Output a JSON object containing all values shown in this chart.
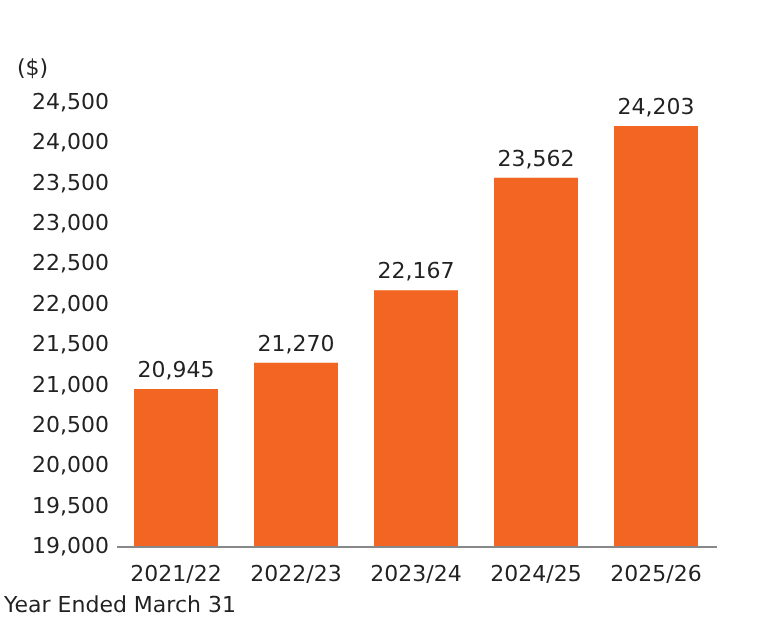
{
  "chart_data": {
    "type": "bar",
    "ylabel": "($)",
    "categories": [
      "2021/22",
      "2022/23",
      "2023/24",
      "2024/25",
      "2025/26"
    ],
    "values": [
      20945,
      21270,
      22167,
      23562,
      24203
    ],
    "color": "#f26522",
    "value_labels": [
      "20,945",
      "21,270",
      "22,167",
      "23,562",
      "24,203"
    ],
    "ylim": [
      19000,
      24500
    ],
    "yticks": [
      {
        "value": 19000,
        "label": "19,000"
      },
      {
        "value": 19500,
        "label": "19,500"
      },
      {
        "value": 20000,
        "label": "20,000"
      },
      {
        "value": 20500,
        "label": "20,500"
      },
      {
        "value": 21000,
        "label": "21,000"
      },
      {
        "value": 21500,
        "label": "21,500"
      },
      {
        "value": 22000,
        "label": "22,000"
      },
      {
        "value": 22500,
        "label": "22,500"
      },
      {
        "value": 23000,
        "label": "23,000"
      },
      {
        "value": 23500,
        "label": "23,500"
      },
      {
        "value": 24000,
        "label": "24,000"
      },
      {
        "value": 24500,
        "label": "24,500"
      }
    ],
    "grid": false,
    "annotations": [
      "Year Ended March 31"
    ]
  }
}
